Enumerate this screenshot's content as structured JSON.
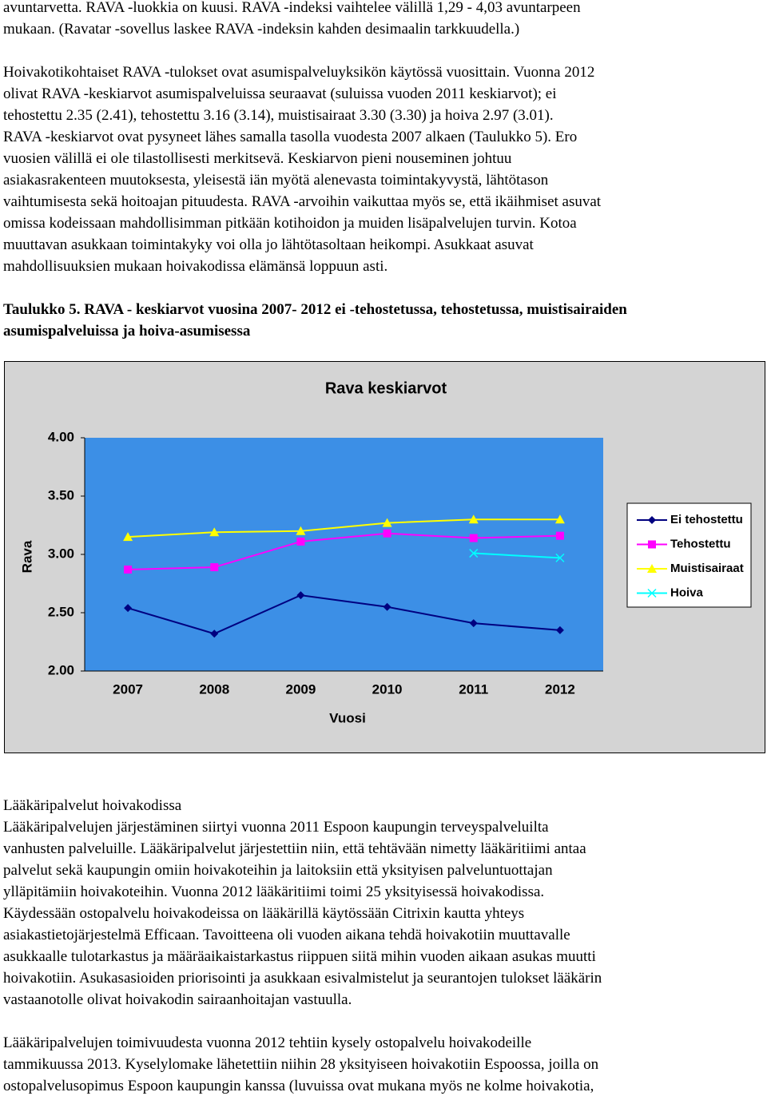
{
  "paragraphs": [
    {
      "lines": [
        "avuntarvetta. RAVA -luokkia on kuusi. RAVA -indeksi vaihtelee välillä 1,29 - 4,03 avuntarpeen",
        "mukaan. (Ravatar -sovellus laskee RAVA -indeksin kahden desimaalin tarkkuudella.)"
      ]
    },
    {
      "lines": [
        "Hoivakotikohtaiset RAVA -tulokset ovat asumispalveluyksikön käytössä vuosittain. Vuonna 2012",
        "olivat RAVA -keskiarvot asumispalveluissa seuraavat (suluissa vuoden 2011 keskiarvot); ei",
        "tehostettu 2.35 (2.41), tehostettu 3.16 (3.14), muistisairaat 3.30 (3.30) ja hoiva 2.97 (3.01).",
        "RAVA -keskiarvot ovat pysyneet lähes samalla tasolla vuodesta 2007 alkaen (Taulukko 5). Ero",
        "vuosien välillä ei ole tilastollisesti merkitsevä. Keskiarvon pieni nouseminen johtuu",
        "asiakasrakenteen muutoksesta, yleisestä iän myötä alenevasta toimintakyvystä, lähtötason",
        "vaihtumisesta sekä hoitoajan pituudesta. RAVA -arvoihin vaikuttaa myös se, että ikäihmiset asuvat",
        "omissa kodeissaan mahdollisimman pitkään kotihoidon ja muiden lisäpalvelujen turvin. Kotoa",
        "muuttavan asukkaan toimintakyky voi olla jo lähtötasoltaan heikompi. Asukkaat asuvat",
        "mahdollisuuksien mukaan hoivakodissa elämänsä loppuun asti."
      ]
    },
    {
      "lines": [
        "Taulukko 5. RAVA - keskiarvot vuosina 2007- 2012 ei -tehostetussa, tehostetussa, muistisairaiden",
        "asumispalveluissa ja hoiva-asumisessa"
      ]
    },
    {
      "lines": [
        "Lääkäripalvelut hoivakodissa",
        "Lääkäripalvelujen järjestäminen siirtyi vuonna 2011 Espoon kaupungin terveyspalveluilta",
        "vanhusten palveluille. Lääkäripalvelut järjestettiin niin, että tehtävään nimetty lääkäritiimi antaa",
        "palvelut sekä kaupungin omiin hoivakoteihin ja laitoksiin että yksityisen palveluntuottajan",
        "ylläpitämiin hoivakoteihin. Vuonna 2012 lääkäritiimi toimi 25 yksityisessä hoivakodissa.",
        "Käydessään ostopalvelu hoivakodeissa on lääkärillä käytössään Citrixin kautta yhteys",
        "asiakastietojärjestelmä Efficaan. Tavoitteena oli vuoden aikana tehdä hoivakotiin muuttavalle",
        "asukkaalle tulotarkastus ja määräaikaistarkastus riippuen siitä mihin vuoden aikaan asukas muutti",
        "hoivakotiin. Asukasasioiden priorisointi ja asukkaan esivalmistelut ja seurantojen tulokset lääkärin",
        "vastaanotolle olivat hoivakodin sairaanhoitajan vastuulla."
      ]
    },
    {
      "lines": [
        "Lääkäripalvelujen toimivuudesta vuonna 2012 tehtiin kysely ostopalvelu hoivakodeille",
        "tammikuussa 2013. Kyselylomake lähetettiin niihin 28 yksityiseen hoivakotiin Espoossa, joilla on",
        "ostopalvelusopimus Espoon kaupungin kanssa (luvuissa ovat mukana myös ne kolme hoivakotia,"
      ]
    }
  ],
  "chart_data": {
    "type": "line",
    "title": "Rava keskiarvot",
    "x_label": "Vuosi",
    "y_label": "Rava",
    "categories": [
      "2007",
      "2008",
      "2009",
      "2010",
      "2011",
      "2012"
    ],
    "series": [
      {
        "name": "Ei tehostettu",
        "color": "#000080",
        "marker": "diamond",
        "values": [
          2.54,
          2.32,
          2.65,
          2.55,
          2.41,
          2.35
        ]
      },
      {
        "name": "Tehostettu",
        "color": "#ff00ff",
        "marker": "square",
        "values": [
          2.87,
          2.89,
          3.11,
          3.18,
          3.14,
          3.16
        ]
      },
      {
        "name": "Muistisairaat",
        "color": "#ffff00",
        "marker": "triangle",
        "values": [
          3.15,
          3.19,
          3.2,
          3.27,
          3.3,
          3.3
        ]
      },
      {
        "name": "Hoiva",
        "color": "#00ffff",
        "marker": "x",
        "values": [
          null,
          null,
          null,
          null,
          3.01,
          2.97
        ]
      }
    ],
    "ylim": [
      2,
      4
    ],
    "yticks": [
      {
        "value": 2,
        "label": "2.00"
      },
      {
        "value": 2.5,
        "label": "2.50"
      },
      {
        "value": 3,
        "label": "3.00"
      },
      {
        "value": 3.5,
        "label": "3.50"
      },
      {
        "value": 4,
        "label": "4.00"
      }
    ],
    "grid": false,
    "legend": "right"
  }
}
